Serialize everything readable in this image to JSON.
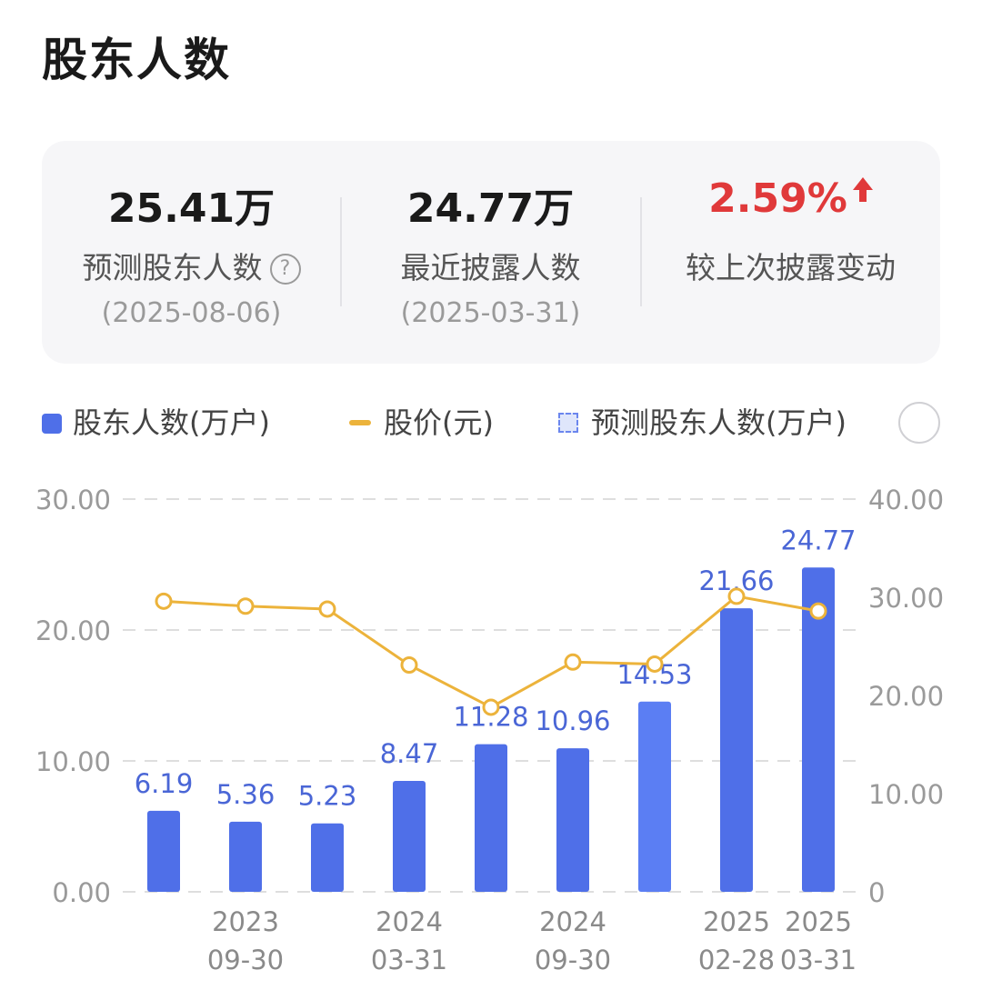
{
  "header": {
    "title": "股东人数"
  },
  "stats": [
    {
      "value": "25.41万",
      "label": "预测股东人数",
      "date": "(2025-08-06)",
      "help_icon": "question-circle-icon"
    },
    {
      "value": "24.77万",
      "label": "最近披露人数",
      "date": "(2025-03-31)"
    },
    {
      "value": "2.59%",
      "label": "较上次披露变动",
      "trend_icon": "arrow-up-icon",
      "color": "#e0393a"
    }
  ],
  "legend": {
    "bar_label": "股东人数(万户)",
    "line_label": "股价(元)",
    "pred_label": "预测股东人数(万户)",
    "toggle_icon": "circle-toggle-icon"
  },
  "colors": {
    "bar": "#4f6fe8",
    "bar_highlight": "#5b7ef3",
    "line": "#ecb33b",
    "label": "#4a66d6"
  },
  "chart_data": {
    "type": "bar",
    "left_axis": {
      "ticks": [
        "30.00",
        "20.00",
        "10.00",
        "0.00"
      ],
      "ylim": [
        0,
        30
      ]
    },
    "right_axis": {
      "ticks": [
        "40.00",
        "30.00",
        "20.00",
        "10.00",
        "0"
      ],
      "ylim": [
        0,
        40
      ]
    },
    "x_labels": [
      {
        "index": 1,
        "line1": "2023",
        "line2": "09-30"
      },
      {
        "index": 3,
        "line1": "2024",
        "line2": "03-31"
      },
      {
        "index": 5,
        "line1": "2024",
        "line2": "09-30"
      },
      {
        "index": 7,
        "line1": "2025",
        "line2": "02-28"
      },
      {
        "index": 8,
        "line1": "2025",
        "line2": "03-31"
      }
    ],
    "series": [
      {
        "name": "股东人数(万户)",
        "type": "bar",
        "axis": "left",
        "values": [
          6.19,
          5.36,
          5.23,
          8.47,
          11.28,
          10.96,
          14.53,
          21.66,
          24.77
        ],
        "labels": [
          "6.19",
          "5.36",
          "5.23",
          "8.47",
          "11.28",
          "10.96",
          "14.53",
          "21.66",
          "24.77"
        ]
      },
      {
        "name": "股价(元)",
        "type": "line",
        "axis": "right",
        "values": [
          29.6,
          29.1,
          28.8,
          23.1,
          18.8,
          23.4,
          23.2,
          30.1,
          28.6
        ]
      }
    ]
  }
}
